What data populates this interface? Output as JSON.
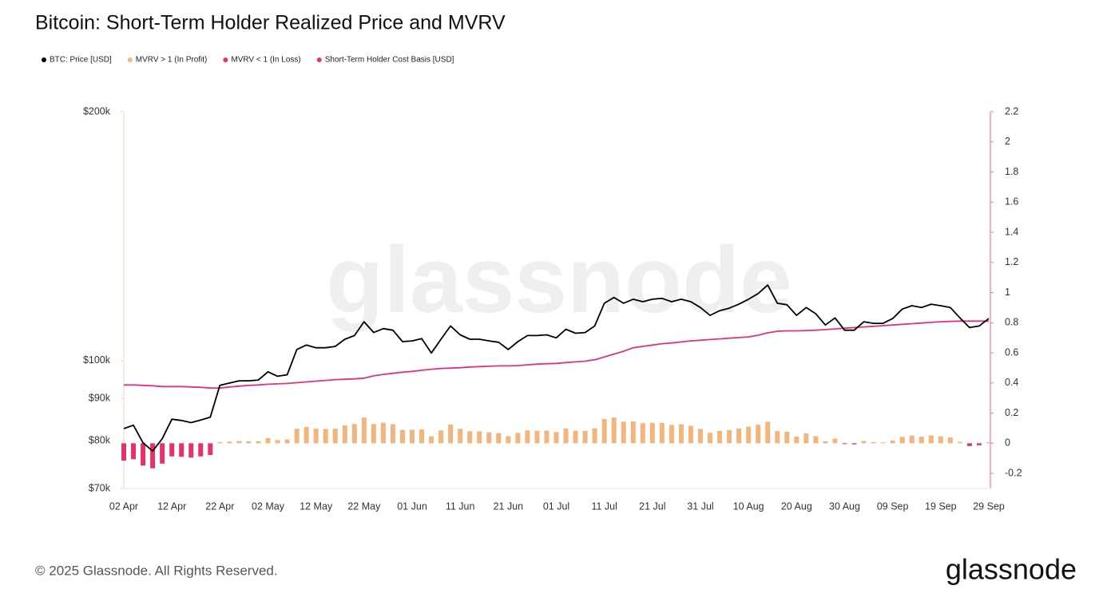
{
  "chart_data": {
    "type": "combo",
    "title": "Bitcoin: Short-Term Holder Realized Price and MVRV",
    "watermark": "glassnode",
    "categories": [
      "02 Apr",
      null,
      null,
      null,
      null,
      "12 Apr",
      null,
      null,
      null,
      null,
      "22 Apr",
      null,
      null,
      null,
      null,
      "02 May",
      null,
      null,
      null,
      null,
      "12 May",
      null,
      null,
      null,
      null,
      "22 May",
      null,
      null,
      null,
      null,
      "01 Jun",
      null,
      null,
      null,
      null,
      "11 Jun",
      null,
      null,
      null,
      null,
      "21 Jun",
      null,
      null,
      null,
      null,
      "01 Jul",
      null,
      null,
      null,
      null,
      "11 Jul",
      null,
      null,
      null,
      null,
      "21 Jul",
      null,
      null,
      null,
      null,
      "31 Jul",
      null,
      null,
      null,
      null,
      "10 Aug",
      null,
      null,
      null,
      null,
      "20 Aug",
      null,
      null,
      null,
      null,
      "30 Aug",
      null,
      null,
      null,
      null,
      "09 Sep",
      null,
      null,
      null,
      null,
      "19 Sep",
      null,
      null,
      null,
      null,
      "29 Sep"
    ],
    "ylog": true,
    "ylim": [
      70000,
      200000
    ],
    "yticks": [
      {
        "value": 70000,
        "label": "$70k"
      },
      {
        "value": 80000,
        "label": "$80k"
      },
      {
        "value": 90000,
        "label": "$90k"
      },
      {
        "value": 100000,
        "label": "$100k"
      },
      {
        "value": 200000,
        "label": "$200k"
      }
    ],
    "y2lim": [
      -0.3,
      2.2
    ],
    "y2ticks": [
      -0.2,
      0,
      0.2,
      0.4,
      0.6,
      0.8,
      1,
      1.2,
      1.4,
      1.6,
      1.8,
      2,
      2.2
    ],
    "series": [
      {
        "name": "BTC: Price [USD]",
        "type": "line",
        "color": "#000000",
        "values": [
          82700,
          83500,
          79500,
          77700,
          80400,
          84900,
          84600,
          84100,
          84700,
          85400,
          93300,
          93900,
          94500,
          94500,
          94700,
          96900,
          95700,
          96100,
          103100,
          104400,
          103600,
          103600,
          104000,
          106100,
          107200,
          111400,
          108100,
          109300,
          108800,
          105400,
          105600,
          106300,
          102100,
          106100,
          110100,
          107400,
          106100,
          106100,
          105600,
          105200,
          103100,
          105400,
          107200,
          107200,
          107400,
          106500,
          109100,
          107900,
          108100,
          110100,
          117300,
          119200,
          117300,
          118600,
          117800,
          118600,
          118900,
          117800,
          118600,
          117800,
          115900,
          113400,
          114900,
          115700,
          117000,
          118600,
          120500,
          123400,
          117300,
          116800,
          113400,
          115900,
          113900,
          110400,
          112600,
          108800,
          108800,
          111400,
          110900,
          110900,
          112400,
          115400,
          116500,
          115900,
          117000,
          116500,
          115900,
          112600,
          109600,
          110100,
          112400
        ]
      },
      {
        "name": "MVRV > 1 (In Profit)",
        "type": "bar",
        "axis": "y2",
        "color": "#f2b57c",
        "values": [
          null,
          null,
          null,
          null,
          null,
          null,
          null,
          null,
          null,
          null,
          0.008,
          0.011,
          0.015,
          0.013,
          0.014,
          0.035,
          0.021,
          0.025,
          0.097,
          0.108,
          0.097,
          0.095,
          0.097,
          0.118,
          0.128,
          0.17,
          0.128,
          0.136,
          0.127,
          0.089,
          0.089,
          0.092,
          0.046,
          0.085,
          0.125,
          0.096,
          0.08,
          0.079,
          0.073,
          0.068,
          0.047,
          0.069,
          0.085,
          0.083,
          0.084,
          0.074,
          0.098,
          0.083,
          0.083,
          0.099,
          0.161,
          0.171,
          0.143,
          0.145,
          0.133,
          0.136,
          0.135,
          0.122,
          0.126,
          0.116,
          0.095,
          0.07,
          0.082,
          0.087,
          0.098,
          0.11,
          0.123,
          0.143,
          0.081,
          0.076,
          0.044,
          0.066,
          0.047,
          0.013,
          0.031,
          null,
          null,
          0.015,
          0.008,
          0.006,
          0.018,
          0.043,
          0.051,
          0.044,
          0.052,
          0.046,
          0.039,
          0.009,
          null,
          null,
          0.007
        ]
      },
      {
        "name": "MVRV < 1 (In Loss)",
        "type": "bar",
        "axis": "y2",
        "color": "#e5336a",
        "values": [
          -0.115,
          -0.106,
          -0.148,
          -0.166,
          -0.135,
          -0.087,
          -0.09,
          -0.095,
          -0.087,
          -0.078,
          null,
          null,
          null,
          null,
          null,
          null,
          null,
          null,
          null,
          null,
          null,
          null,
          null,
          null,
          null,
          null,
          null,
          null,
          null,
          null,
          null,
          null,
          null,
          null,
          null,
          null,
          null,
          null,
          null,
          null,
          null,
          null,
          null,
          null,
          null,
          null,
          null,
          null,
          null,
          null,
          null,
          null,
          null,
          null,
          null,
          null,
          null,
          null,
          null,
          null,
          null,
          null,
          null,
          null,
          null,
          null,
          null,
          null,
          null,
          null,
          null,
          null,
          null,
          null,
          null,
          -0.005,
          -0.007,
          null,
          null,
          null,
          null,
          null,
          null,
          null,
          null,
          null,
          null,
          null,
          -0.018,
          -0.013,
          null
        ]
      },
      {
        "name": "Short-Term Holder Cost Basis [USD]",
        "type": "line",
        "color": "#e0337c",
        "values": [
          93400,
          93400,
          93300,
          93200,
          93000,
          93000,
          93000,
          92900,
          92800,
          92600,
          92600,
          92900,
          93100,
          93300,
          93400,
          93600,
          93700,
          93800,
          94000,
          94200,
          94400,
          94600,
          94800,
          94900,
          95000,
          95200,
          95800,
          96200,
          96500,
          96800,
          97000,
          97300,
          97600,
          97800,
          97900,
          98000,
          98200,
          98300,
          98400,
          98500,
          98500,
          98600,
          98800,
          99000,
          99100,
          99200,
          99400,
          99600,
          99800,
          100200,
          101000,
          101800,
          102600,
          103600,
          104000,
          104400,
          104800,
          105000,
          105300,
          105600,
          105800,
          106000,
          106200,
          106400,
          106600,
          106800,
          107300,
          108000,
          108500,
          108600,
          108600,
          108700,
          108800,
          109000,
          109200,
          109400,
          109600,
          109800,
          110000,
          110200,
          110400,
          110600,
          110800,
          111000,
          111200,
          111400,
          111500,
          111600,
          111600,
          111600,
          111600
        ]
      }
    ]
  },
  "footer": {
    "copyright": "© 2025 Glassnode. All Rights Reserved.",
    "brand": "glassnode"
  }
}
